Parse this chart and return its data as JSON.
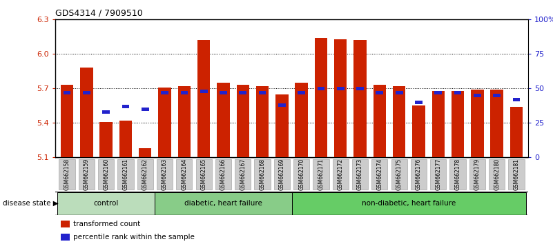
{
  "title": "GDS4314 / 7909510",
  "samples": [
    "GSM662158",
    "GSM662159",
    "GSM662160",
    "GSM662161",
    "GSM662162",
    "GSM662163",
    "GSM662164",
    "GSM662165",
    "GSM662166",
    "GSM662167",
    "GSM662168",
    "GSM662169",
    "GSM662170",
    "GSM662171",
    "GSM662172",
    "GSM662173",
    "GSM662174",
    "GSM662175",
    "GSM662176",
    "GSM662177",
    "GSM662178",
    "GSM662179",
    "GSM662180",
    "GSM662181"
  ],
  "bar_values": [
    5.73,
    5.88,
    5.41,
    5.42,
    5.18,
    5.71,
    5.72,
    6.12,
    5.75,
    5.73,
    5.72,
    5.65,
    5.75,
    6.14,
    6.13,
    6.12,
    5.73,
    5.72,
    5.55,
    5.68,
    5.68,
    5.69,
    5.69,
    5.54
  ],
  "percentile_values": [
    47,
    47,
    33,
    37,
    35,
    47,
    47,
    48,
    47,
    47,
    47,
    38,
    47,
    50,
    50,
    50,
    47,
    47,
    40,
    47,
    47,
    45,
    45,
    42
  ],
  "ymin": 5.1,
  "ymax": 6.3,
  "yticks": [
    5.1,
    5.4,
    5.7,
    6.0,
    6.3
  ],
  "right_yticks": [
    0,
    25,
    50,
    75,
    100
  ],
  "right_ytick_labels": [
    "0",
    "25",
    "50",
    "75",
    "100%"
  ],
  "bar_color": "#cc2200",
  "percentile_color": "#2222cc",
  "bar_width": 0.65,
  "groups": [
    {
      "label": "control",
      "start": 0,
      "end": 4,
      "color": "#bbddbb"
    },
    {
      "label": "diabetic, heart failure",
      "start": 5,
      "end": 11,
      "color": "#88cc88"
    },
    {
      "label": "non-diabetic, heart failure",
      "start": 12,
      "end": 23,
      "color": "#66cc66"
    }
  ],
  "legend_items": [
    {
      "label": "transformed count",
      "color": "#cc2200"
    },
    {
      "label": "percentile rank within the sample",
      "color": "#2222cc"
    }
  ],
  "disease_state_label": "disease state",
  "left_axis_color": "#cc2200",
  "right_axis_color": "#2222cc",
  "background_plot": "#ffffff",
  "ticklabel_bg": "#cccccc"
}
